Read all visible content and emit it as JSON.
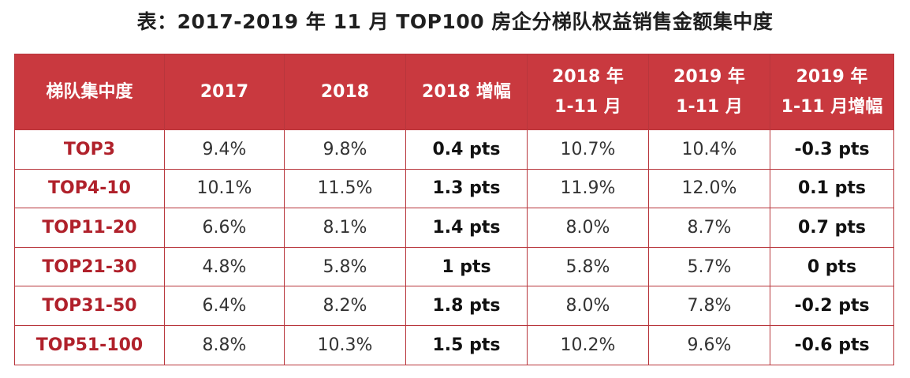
{
  "title": "表：2017-2019 年 11 月 TOP100 房企分梯队权益销售金额集中度",
  "table": {
    "headers": [
      {
        "lines": [
          "梯队集中度"
        ]
      },
      {
        "lines": [
          "2017"
        ]
      },
      {
        "lines": [
          "2018"
        ]
      },
      {
        "lines": [
          "2018 增幅"
        ]
      },
      {
        "lines": [
          "2018 年",
          "1-11 月"
        ]
      },
      {
        "lines": [
          "2019 年",
          "1-11 月"
        ]
      },
      {
        "lines": [
          "2019 年",
          "1-11 月增幅"
        ]
      }
    ],
    "rows": [
      {
        "tier": "TOP3",
        "y2017": "9.4%",
        "y2018": "9.8%",
        "inc2018": "0.4 pts",
        "ytd2018": "10.7%",
        "ytd2019": "10.4%",
        "inc2019": "-0.3 pts"
      },
      {
        "tier": "TOP4-10",
        "y2017": "10.1%",
        "y2018": "11.5%",
        "inc2018": "1.3 pts",
        "ytd2018": "11.9%",
        "ytd2019": "12.0%",
        "inc2019": "0.1 pts"
      },
      {
        "tier": "TOP11-20",
        "y2017": "6.6%",
        "y2018": "8.1%",
        "inc2018": "1.4 pts",
        "ytd2018": "8.0%",
        "ytd2019": "8.7%",
        "inc2019": "0.7 pts"
      },
      {
        "tier": "TOP21-30",
        "y2017": "4.8%",
        "y2018": "5.8%",
        "inc2018": "1 pts",
        "ytd2018": "5.8%",
        "ytd2019": "5.7%",
        "inc2019": "0 pts"
      },
      {
        "tier": "TOP31-50",
        "y2017": "6.4%",
        "y2018": "8.2%",
        "inc2018": "1.8 pts",
        "ytd2018": "8.0%",
        "ytd2019": "7.8%",
        "inc2019": "-0.2 pts"
      },
      {
        "tier": "TOP51-100",
        "y2017": "8.8%",
        "y2018": "10.3%",
        "inc2018": "1.5 pts",
        "ytd2018": "10.2%",
        "ytd2019": "9.6%",
        "inc2019": "-0.6 pts"
      }
    ]
  },
  "colors": {
    "header_bg": "#c9393f",
    "border": "#b8363c",
    "tier_text": "#b0212b"
  }
}
